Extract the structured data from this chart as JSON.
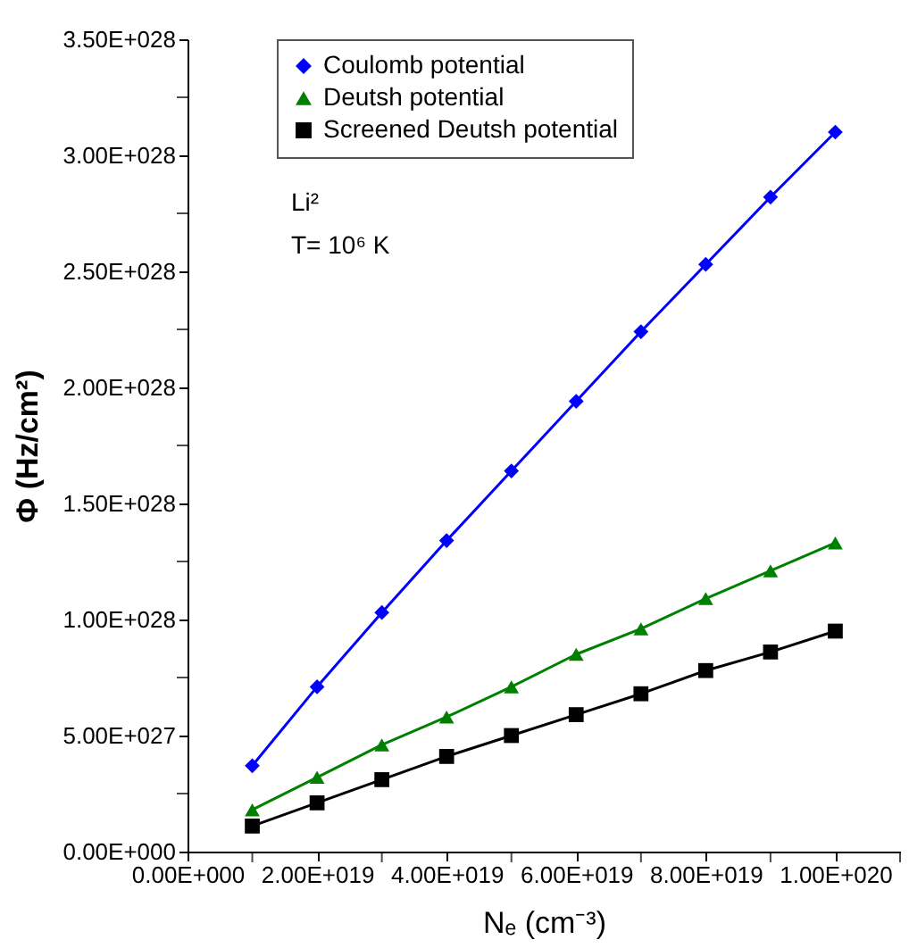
{
  "chart_data": {
    "type": "line",
    "xlabel": "Nₑ (cm⁻³)",
    "ylabel": "Φ (Hz/cm²)",
    "annotations": [
      "Li²",
      "T= 10⁶ K"
    ],
    "x": [
      1e+19,
      2e+19,
      3e+19,
      4e+19,
      5e+19,
      6e+19,
      7e+19,
      8e+19,
      9e+19,
      1e+20
    ],
    "series": [
      {
        "name": "Coulomb potential",
        "color": "#0000ff",
        "marker": "diamond",
        "values": [
          3.7e+27,
          7.1e+27,
          1.03e+28,
          1.34e+28,
          1.64e+28,
          1.94e+28,
          2.24e+28,
          2.53e+28,
          2.82e+28,
          3.1e+28
        ]
      },
      {
        "name": "Deutsh potential",
        "color": "#008000",
        "marker": "triangle",
        "values": [
          1.8e+27,
          3.2e+27,
          4.6e+27,
          5.8e+27,
          7.1e+27,
          8.5e+27,
          9.6e+27,
          1.09e+28,
          1.21e+28,
          1.33e+28
        ]
      },
      {
        "name": "Screened Deutsh potential",
        "color": "#000000",
        "marker": "square",
        "values": [
          1.1e+27,
          2.1e+27,
          3.1e+27,
          4.1e+27,
          5e+27,
          5.9e+27,
          6.8e+27,
          7.8e+27,
          8.6e+27,
          9.5e+27
        ]
      }
    ],
    "xlim": [
      0,
      1.1e+20
    ],
    "xticks": [
      {
        "value": 0,
        "label": "0.00E+000"
      },
      {
        "value": 1e+19,
        "label": null
      },
      {
        "value": 2e+19,
        "label": "2.00E+019"
      },
      {
        "value": 3e+19,
        "label": null
      },
      {
        "value": 4e+19,
        "label": "4.00E+019"
      },
      {
        "value": 5e+19,
        "label": null
      },
      {
        "value": 6e+19,
        "label": "6.00E+019"
      },
      {
        "value": 7e+19,
        "label": null
      },
      {
        "value": 8e+19,
        "label": "8.00E+019"
      },
      {
        "value": 9e+19,
        "label": null
      },
      {
        "value": 1e+20,
        "label": "1.00E+020"
      },
      {
        "value": 1.1e+20,
        "label": null
      }
    ],
    "ylim": [
      0,
      3.5e+28
    ],
    "yticks": [
      {
        "value": 0,
        "label": "0.00E+000"
      },
      {
        "value": 2.5e+27,
        "label": null
      },
      {
        "value": 5e+27,
        "label": "5.00E+027"
      },
      {
        "value": 7.5e+27,
        "label": null
      },
      {
        "value": 1e+28,
        "label": "1.00E+028"
      },
      {
        "value": 1.25e+28,
        "label": null
      },
      {
        "value": 1.5e+28,
        "label": "1.50E+028"
      },
      {
        "value": 1.75e+28,
        "label": null
      },
      {
        "value": 2e+28,
        "label": "2.00E+028"
      },
      {
        "value": 2.25e+28,
        "label": null
      },
      {
        "value": 2.5e+28,
        "label": "2.50E+028"
      },
      {
        "value": 2.75e+28,
        "label": null
      },
      {
        "value": 3e+28,
        "label": "3.00E+028"
      },
      {
        "value": 3.25e+28,
        "label": null
      },
      {
        "value": 3.5e+28,
        "label": "3.50E+028"
      }
    ],
    "grid": false,
    "legend": "top left",
    "line_style": "solid"
  }
}
